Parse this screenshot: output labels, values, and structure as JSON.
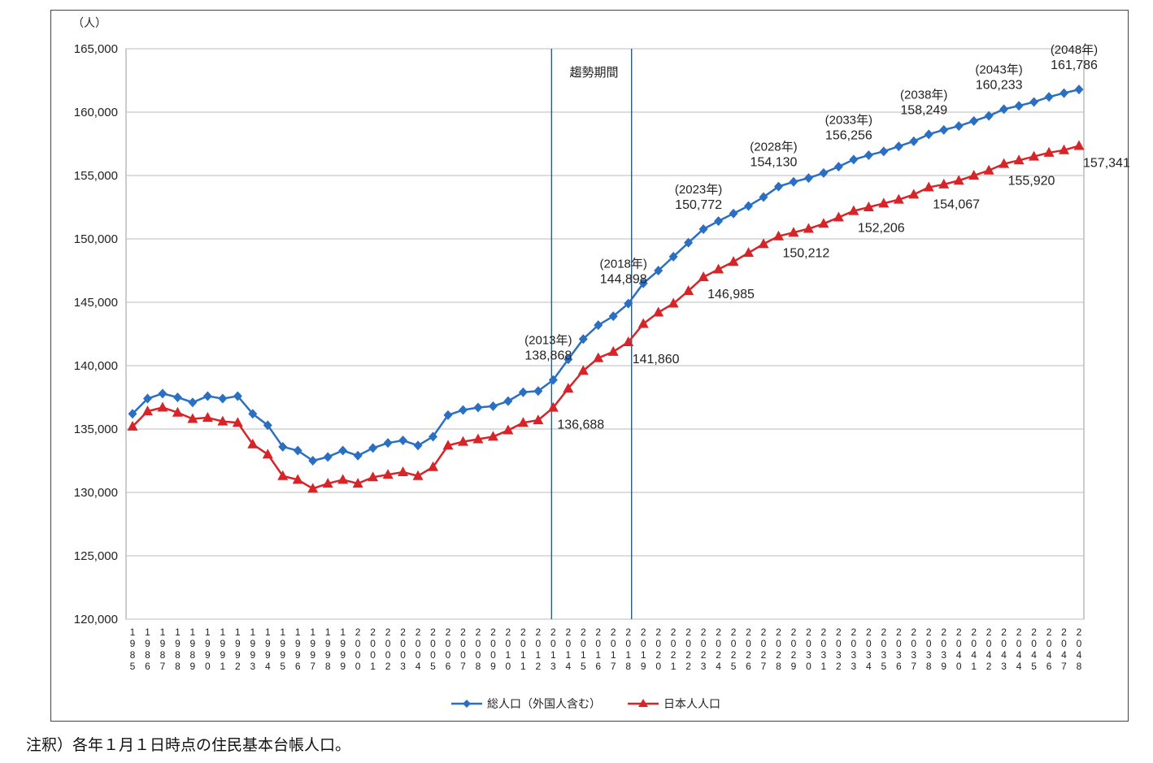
{
  "chart_data": {
    "type": "line",
    "ylabel": "（人）",
    "ylim": [
      120000,
      165000
    ],
    "yticks": [
      "120,000",
      "125,000",
      "130,000",
      "135,000",
      "140,000",
      "145,000",
      "150,000",
      "155,000",
      "160,000",
      "165,000"
    ],
    "x": [
      "1985",
      "1986",
      "1987",
      "1988",
      "1989",
      "1990",
      "1991",
      "1992",
      "1993",
      "1994",
      "1995",
      "1996",
      "1997",
      "1998",
      "1999",
      "2000",
      "2001",
      "2002",
      "2003",
      "2004",
      "2005",
      "2006",
      "2007",
      "2008",
      "2009",
      "2010",
      "2011",
      "2012",
      "2013",
      "2014",
      "2015",
      "2016",
      "2017",
      "2018",
      "2019",
      "2020",
      "2021",
      "2022",
      "2023",
      "2024",
      "2025",
      "2026",
      "2027",
      "2028",
      "2029",
      "2030",
      "2031",
      "2032",
      "2033",
      "2034",
      "2035",
      "2036",
      "2037",
      "2038",
      "2039",
      "2040",
      "2041",
      "2042",
      "2043",
      "2044",
      "2045",
      "2046",
      "2047",
      "2048"
    ],
    "series": [
      {
        "name": "総人口（外国人含む）",
        "color": "#2a6fc2",
        "marker": "diamond",
        "values": [
          136200,
          137400,
          137800,
          137500,
          137100,
          137600,
          137400,
          137600,
          136200,
          135300,
          133600,
          133300,
          132500,
          132800,
          133300,
          132900,
          133500,
          133900,
          134100,
          133700,
          134400,
          136100,
          136500,
          136700,
          136800,
          137200,
          137900,
          138000,
          138868,
          140500,
          142100,
          143200,
          143900,
          144898,
          146500,
          147500,
          148600,
          149700,
          150772,
          151400,
          152000,
          152600,
          153300,
          154130,
          154500,
          154800,
          155200,
          155700,
          156256,
          156600,
          156900,
          157300,
          157700,
          158249,
          158600,
          158900,
          159300,
          159700,
          160233,
          160500,
          160800,
          161200,
          161500,
          161786
        ]
      },
      {
        "name": "日本人人口",
        "color": "#d62428",
        "marker": "triangle",
        "values": [
          135200,
          136400,
          136700,
          136300,
          135800,
          135900,
          135600,
          135500,
          133800,
          133000,
          131300,
          131000,
          130300,
          130700,
          131000,
          130700,
          131200,
          131400,
          131600,
          131300,
          132000,
          133700,
          134000,
          134200,
          134400,
          134900,
          135500,
          135700,
          136688,
          138200,
          139600,
          140600,
          141100,
          141860,
          143300,
          144200,
          144900,
          145900,
          146985,
          147600,
          148200,
          148900,
          149600,
          150212,
          150500,
          150800,
          151200,
          151700,
          152206,
          152500,
          152800,
          153100,
          153500,
          154067,
          154300,
          154600,
          155000,
          155400,
          155920,
          156200,
          156500,
          156800,
          157000,
          157341
        ]
      }
    ],
    "legend": [
      "総人口（外国人含む）",
      "日本人人口"
    ],
    "legend_position": "bottom",
    "period_label": "趨勢期間",
    "period_range": [
      "2013",
      "2018"
    ],
    "annotations": [
      {
        "year": "2013",
        "label": "(2013年)",
        "value": "138,868",
        "series": 0
      },
      {
        "year": "2018",
        "label": "(2018年)",
        "value": "144,898",
        "series": 0
      },
      {
        "year": "2023",
        "label": "(2023年)",
        "value": "150,772",
        "series": 0
      },
      {
        "year": "2028",
        "label": "(2028年)",
        "value": "154,130",
        "series": 0
      },
      {
        "year": "2033",
        "label": "(2033年)",
        "value": "156,256",
        "series": 0
      },
      {
        "year": "2038",
        "label": "(2038年)",
        "value": "158,249",
        "series": 0
      },
      {
        "year": "2043",
        "label": "(2043年)",
        "value": "160,233",
        "series": 0
      },
      {
        "year": "2048",
        "label": "(2048年)",
        "value": "161,786",
        "series": 0
      },
      {
        "year": "2013",
        "label": "",
        "value": "136,688",
        "series": 1
      },
      {
        "year": "2018",
        "label": "",
        "value": "141,860",
        "series": 1
      },
      {
        "year": "2023",
        "label": "",
        "value": "146,985",
        "series": 1
      },
      {
        "year": "2028",
        "label": "",
        "value": "150,212",
        "series": 1
      },
      {
        "year": "2033",
        "label": "",
        "value": "152,206",
        "series": 1
      },
      {
        "year": "2038",
        "label": "",
        "value": "154,067",
        "series": 1
      },
      {
        "year": "2043",
        "label": "",
        "value": "155,920",
        "series": 1
      },
      {
        "year": "2048",
        "label": "",
        "value": "157,341",
        "series": 1
      }
    ],
    "grid": true
  },
  "footnote": "注釈）各年１月１日時点の住民基本台帳人口。"
}
